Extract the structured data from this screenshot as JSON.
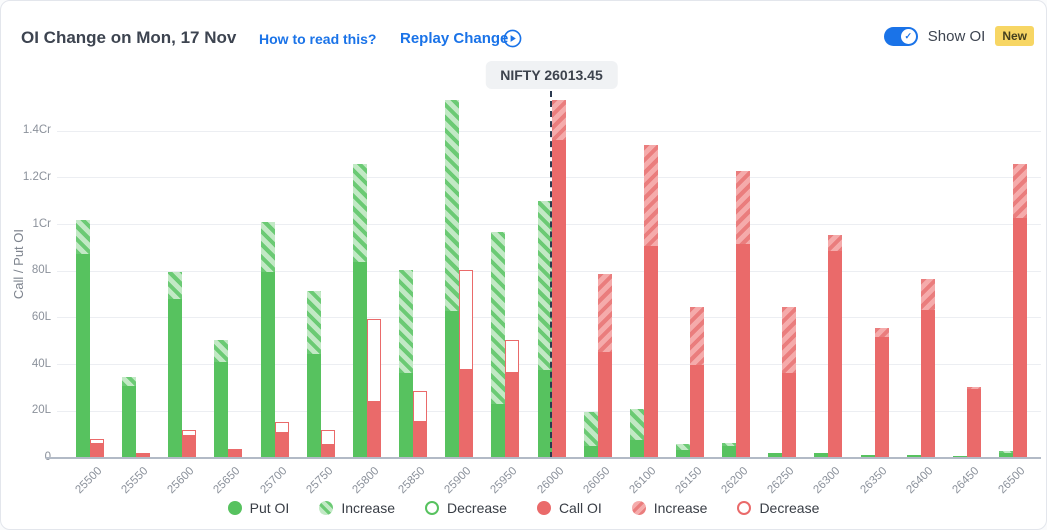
{
  "header": {
    "title": "OI Change on Mon, 17 Nov",
    "how_to_read_link": "How to read this?",
    "replay_link": "Replay Change",
    "show_oi_label": "Show OI",
    "show_oi_state": "on",
    "new_badge": "New"
  },
  "colors": {
    "put_solid": "#57c25f",
    "put_light": "#c2e9c5",
    "call_solid": "#ea6a6a",
    "call_light": "#f5abab",
    "link_blue": "#1a73e8",
    "toggle_blue": "#1a73e8",
    "new_badge_bg": "#f7d664",
    "spot_line": "#2c3950",
    "tooltip_bg": "#f0f2f4",
    "axis_text": "#8b919b"
  },
  "chart_data": {
    "type": "bar",
    "title": "OI Change on Mon, 17 Nov",
    "xlabel": "",
    "ylabel": "Call / Put OI",
    "unit": "values in Lakh; 1Cr = 100L",
    "grid": true,
    "legend_position": "bottom",
    "y_ticks": [
      "0",
      "20L",
      "40L",
      "60L",
      "80L",
      "1Cr",
      "1.2Cr",
      "1.4Cr"
    ],
    "y_tick_values": [
      0,
      20,
      40,
      60,
      80,
      100,
      120,
      140
    ],
    "ylim_lakh": [
      0,
      154.5
    ],
    "strikes": [
      25500,
      25550,
      25600,
      25650,
      25700,
      25750,
      25800,
      25850,
      25900,
      25950,
      26000,
      26050,
      26100,
      26150,
      26200,
      26250,
      26300,
      26350,
      26400,
      26450,
      26500
    ],
    "series": [
      {
        "name": "Put OI",
        "solid_lakh": [
          87.5,
          31,
          68,
          41,
          79.5,
          44.5,
          84,
          36.5,
          63,
          23,
          37.5,
          5,
          7.5,
          3.5,
          5,
          2,
          2,
          1.5,
          1.5,
          1,
          2
        ],
        "change_lakh": [
          14.5,
          3.5,
          11.5,
          9.5,
          21.5,
          27,
          42,
          44,
          90.5,
          74,
          72.5,
          14.5,
          13.5,
          2.5,
          1.5,
          0,
          0,
          0,
          0,
          0,
          1
        ]
      },
      {
        "name": "Call OI",
        "solid_lakh": [
          6,
          2,
          9.5,
          3,
          10.5,
          5.5,
          24,
          15.5,
          37.5,
          36.5,
          136,
          45.5,
          91,
          40,
          91.5,
          36.5,
          88.5,
          52,
          63.5,
          29.5,
          103
        ],
        "change_lakh": [
          -2,
          0,
          -2.5,
          -1,
          -5,
          -6.5,
          -35.5,
          -13,
          -43,
          -14,
          17.5,
          33.5,
          43,
          24.5,
          31.5,
          28,
          7,
          3.5,
          13,
          1,
          23
        ]
      }
    ],
    "change_encoding": "positive change = hatched Increase segment stacked on solid current OI; negative change = hollow outlined Decrease segment stacked on solid current OI",
    "legend": [
      "Put OI",
      "Increase",
      "Decrease",
      "Call OI",
      "Increase",
      "Decrease"
    ],
    "spot_marker": {
      "label": "NIFTY 26013.45",
      "value": 26013.45,
      "nearest_strike": 26000
    }
  }
}
